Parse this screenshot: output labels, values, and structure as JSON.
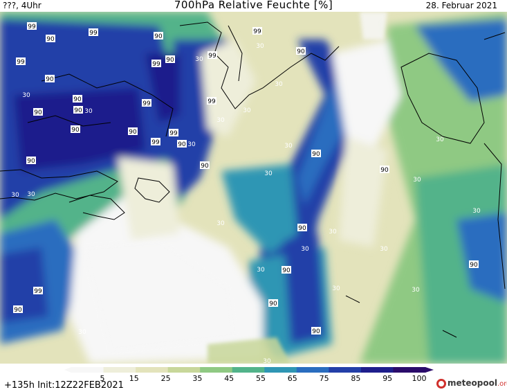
{
  "header": {
    "left": "???, 4Uhr",
    "title": "700hPa Relative Feuchte [%]",
    "right": "28. Februar 2021"
  },
  "footer": {
    "run": "+135h Init:12Z22FEB2021",
    "brand_main": "meteopool",
    "brand_tld": ".org"
  },
  "legend": {
    "ticks": [
      "5",
      "15",
      "25",
      "35",
      "45",
      "55",
      "65",
      "75",
      "85",
      "95",
      "100"
    ],
    "colors": [
      "#f7f7f7",
      "#eeeeda",
      "#e3e3bb",
      "#c8d79a",
      "#8fc983",
      "#52b38a",
      "#2f96b4",
      "#2a6dbf",
      "#233fa8",
      "#1e1e8c",
      "#2a0a6a"
    ]
  },
  "contour_labels": [
    {
      "text": "99"
    },
    {
      "text": "90"
    },
    {
      "text": "99"
    },
    {
      "text": "90"
    },
    {
      "text": "99"
    },
    {
      "text": "90"
    },
    {
      "text": "99"
    },
    {
      "text": "90"
    },
    {
      "text": "30"
    },
    {
      "text": "99"
    },
    {
      "text": "90"
    },
    {
      "text": "30"
    },
    {
      "text": "90"
    },
    {
      "text": "90"
    },
    {
      "text": "30"
    },
    {
      "text": "90"
    },
    {
      "text": "99"
    },
    {
      "text": "90"
    },
    {
      "text": "99"
    },
    {
      "text": "99"
    },
    {
      "text": "99"
    },
    {
      "text": "30"
    },
    {
      "text": "90"
    },
    {
      "text": "30"
    },
    {
      "text": "90"
    },
    {
      "text": "99"
    },
    {
      "text": "30"
    },
    {
      "text": "90"
    },
    {
      "text": "90"
    },
    {
      "text": "30"
    },
    {
      "text": "30"
    },
    {
      "text": "30"
    },
    {
      "text": "30"
    },
    {
      "text": "90"
    },
    {
      "text": "30"
    },
    {
      "text": "30"
    },
    {
      "text": "30"
    },
    {
      "text": "90"
    },
    {
      "text": "30"
    },
    {
      "text": "30"
    },
    {
      "text": "90"
    },
    {
      "text": "30"
    },
    {
      "text": "99"
    },
    {
      "text": "90"
    },
    {
      "text": "90"
    },
    {
      "text": "30"
    },
    {
      "text": "90"
    },
    {
      "text": "30"
    },
    {
      "text": "30"
    },
    {
      "text": "30"
    },
    {
      "text": "30"
    },
    {
      "text": "90"
    },
    {
      "text": "30"
    },
    {
      "text": "30"
    },
    {
      "text": "90"
    },
    {
      "text": "30"
    }
  ]
}
